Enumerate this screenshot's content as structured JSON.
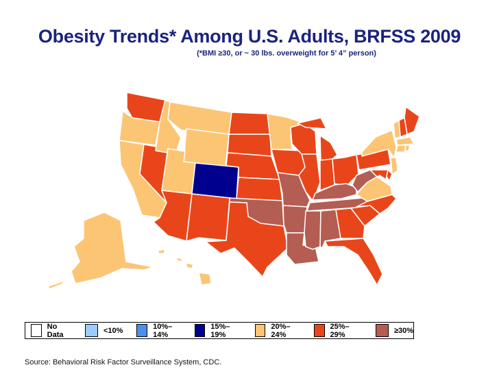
{
  "title": "Obesity Trends* Among U.S. Adults, BRFSS 2009",
  "subtitle": "(*BMI ≥30, or ~ 30 lbs. overweight for 5’ 4” person)",
  "colors": {
    "no_data": "#ffffff",
    "lt10": "#99ccff",
    "10_14": "#4d8ee6",
    "15_19": "#00008f",
    "20_24": "#fbc574",
    "25_29": "#e8461a",
    "gte30": "#b45d53",
    "border": "#ffffff"
  },
  "legend": [
    {
      "label": "No Data",
      "color_key": "no_data"
    },
    {
      "label": "<10%",
      "color_key": "lt10"
    },
    {
      "label": "10%–14%",
      "color_key": "10_14"
    },
    {
      "label": "15%–19%",
      "color_key": "15_19"
    },
    {
      "label": "20%–24%",
      "color_key": "20_24"
    },
    {
      "label": "25%–29%",
      "color_key": "25_29"
    },
    {
      "label": "≥30%",
      "color_key": "gte30"
    }
  ],
  "states": {
    "WA": "25_29",
    "OR": "20_24",
    "CA": "20_24",
    "NV": "25_29",
    "ID": "20_24",
    "MT": "20_24",
    "WY": "20_24",
    "UT": "20_24",
    "CO": "15_19",
    "AZ": "25_29",
    "NM": "25_29",
    "ND": "25_29",
    "SD": "25_29",
    "NE": "25_29",
    "KS": "25_29",
    "OK": "gte30",
    "TX": "25_29",
    "MN": "20_24",
    "IA": "25_29",
    "MO": "gte30",
    "AR": "gte30",
    "LA": "gte30",
    "WI": "25_29",
    "IL": "25_29",
    "MI": "25_29",
    "IN": "25_29",
    "OH": "25_29",
    "KY": "gte30",
    "TN": "gte30",
    "MS": "gte30",
    "AL": "gte30",
    "GA": "25_29",
    "FL": "25_29",
    "SC": "25_29",
    "NC": "25_29",
    "VA": "20_24",
    "WV": "gte30",
    "PA": "25_29",
    "NY": "20_24",
    "NJ": "20_24",
    "DE": "25_29",
    "MD": "25_29",
    "ME": "25_29",
    "NH": "25_29",
    "VT": "20_24",
    "MA": "20_24",
    "CT": "20_24",
    "RI": "20_24",
    "AK": "20_24",
    "HI": "20_24"
  },
  "source": "Source: Behavioral Risk Factor Surveillance System, CDC."
}
